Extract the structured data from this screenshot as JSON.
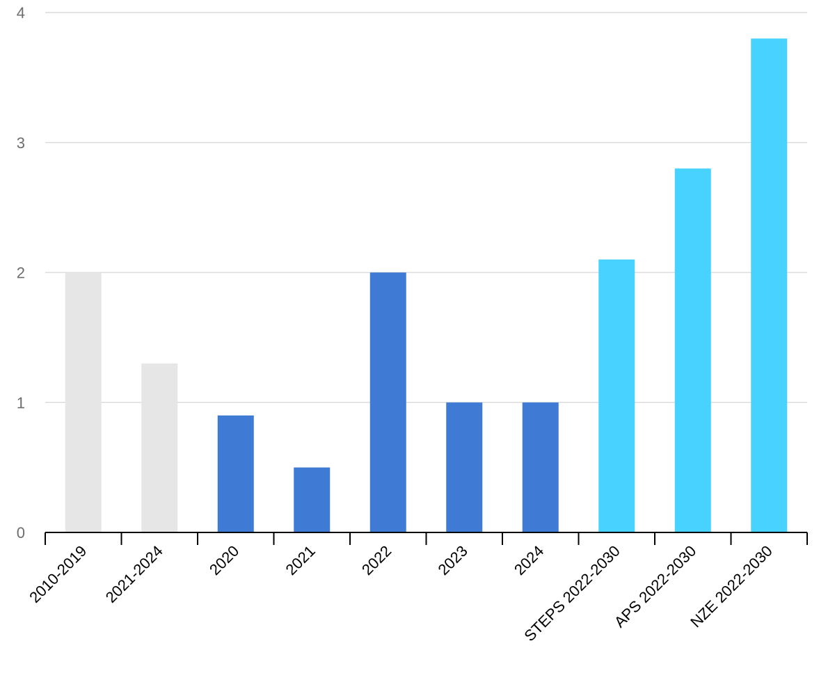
{
  "chart_data": {
    "type": "bar",
    "title": "",
    "xlabel": "",
    "ylabel": "",
    "ylim": [
      0,
      4
    ],
    "yticks": [
      0,
      1,
      2,
      3,
      4
    ],
    "grid": true,
    "legend": "none",
    "categories": [
      "2010-2019",
      "2021-2024",
      "2020",
      "2021",
      "2022",
      "2023",
      "2024",
      "STEPS 2022-2030",
      "APS 2022-2030",
      "NZE 2022-2030"
    ],
    "values": [
      2.0,
      1.3,
      0.9,
      0.5,
      2.0,
      1.0,
      1.0,
      2.1,
      2.8,
      3.8
    ],
    "bar_colors": [
      "#e6e6e6",
      "#e6e6e6",
      "#3f7bd4",
      "#3f7bd4",
      "#3f7bd4",
      "#3f7bd4",
      "#3f7bd4",
      "#48d2ff",
      "#48d2ff",
      "#48d2ff"
    ]
  }
}
